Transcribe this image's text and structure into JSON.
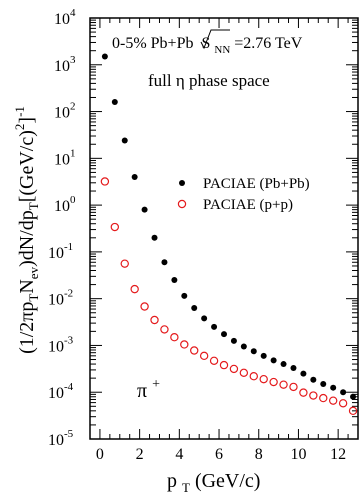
{
  "chart_data": {
    "type": "scatter",
    "xlabel_main": "p",
    "xlabel_sub": "T",
    "xlabel_rest": " (GeV/c)",
    "ylabel_segments": [
      {
        "t": "(1/2πp",
        "sub": false
      },
      {
        "t": "T",
        "sub": true
      },
      {
        "t": "N",
        "sub": false
      },
      {
        "t": "ev",
        "sub": true
      },
      {
        "t": ")dN/dp",
        "sub": false
      },
      {
        "t": "T",
        "sub": true
      },
      {
        "t": "[(GeV/c)",
        "sub": false
      },
      {
        "t": "2",
        "sup": true
      },
      {
        "t": "]",
        "sub": false
      },
      {
        "t": "-1",
        "sup": true
      }
    ],
    "xlim": [
      -0.5,
      13
    ],
    "ylim": [
      1e-05,
      10000.0
    ],
    "yscale": "log",
    "x_ticks": [
      "0",
      "2",
      "4",
      "6",
      "8",
      "10",
      "12"
    ],
    "y_ticks": [
      {
        "base": "10",
        "exp": "4"
      },
      {
        "base": "10",
        "exp": "3"
      },
      {
        "base": "10",
        "exp": "2"
      },
      {
        "base": "10",
        "exp": "1"
      },
      {
        "base": "10",
        "exp": "0"
      },
      {
        "base": "10",
        "exp": "-1"
      },
      {
        "base": "10",
        "exp": "-2"
      },
      {
        "base": "10",
        "exp": "-3"
      },
      {
        "base": "10",
        "exp": "-4"
      },
      {
        "base": "10",
        "exp": "-5"
      }
    ],
    "annotations": {
      "line1": "0-5% Pb+Pb",
      "sqrt": "S",
      "sqrt_sub": "NN",
      "energy": "=2.76 TeV",
      "line2_a": "full ",
      "line2_eta": "η",
      "line2_b": " phase space",
      "particle": "π",
      "particle_sup": "+"
    },
    "legend_position": "right",
    "series": [
      {
        "name": "PACIAE (Pb+Pb)",
        "marker": "filled-circle",
        "color": "#000000",
        "x": [
          0.25,
          0.75,
          1.25,
          1.75,
          2.25,
          2.75,
          3.25,
          3.75,
          4.25,
          4.75,
          5.25,
          5.75,
          6.25,
          6.75,
          7.25,
          7.75,
          8.25,
          8.75,
          9.25,
          9.75,
          10.25,
          10.75,
          11.25,
          11.75,
          12.25,
          12.75
        ],
        "y": [
          1500,
          160,
          24,
          4,
          0.8,
          0.2,
          0.06,
          0.025,
          0.0115,
          0.0063,
          0.0038,
          0.0025,
          0.00175,
          0.00125,
          0.00095,
          0.00075,
          0.0006,
          0.00048,
          0.0004,
          0.00033,
          0.00025,
          0.000185,
          0.00015,
          0.000125,
          0.0001,
          8e-05
        ]
      },
      {
        "name": "PACIAE (p+p)",
        "marker": "open-circle",
        "color": "#e41a1c",
        "x": [
          0.25,
          0.75,
          1.25,
          1.75,
          2.25,
          2.75,
          3.25,
          3.75,
          4.25,
          4.75,
          5.25,
          5.75,
          6.25,
          6.75,
          7.25,
          7.75,
          8.25,
          8.75,
          9.25,
          9.75,
          10.25,
          10.75,
          11.25,
          11.75,
          12.25,
          12.75
        ],
        "y": [
          3.2,
          0.34,
          0.056,
          0.016,
          0.0068,
          0.0035,
          0.0022,
          0.0015,
          0.00105,
          0.00078,
          0.0006,
          0.00047,
          0.00038,
          0.000315,
          0.00026,
          0.00022,
          0.00019,
          0.000165,
          0.000145,
          0.00013,
          9.8e-05,
          8.5e-05,
          7.5e-05,
          6.6e-05,
          5.8e-05,
          4e-05
        ]
      }
    ]
  }
}
